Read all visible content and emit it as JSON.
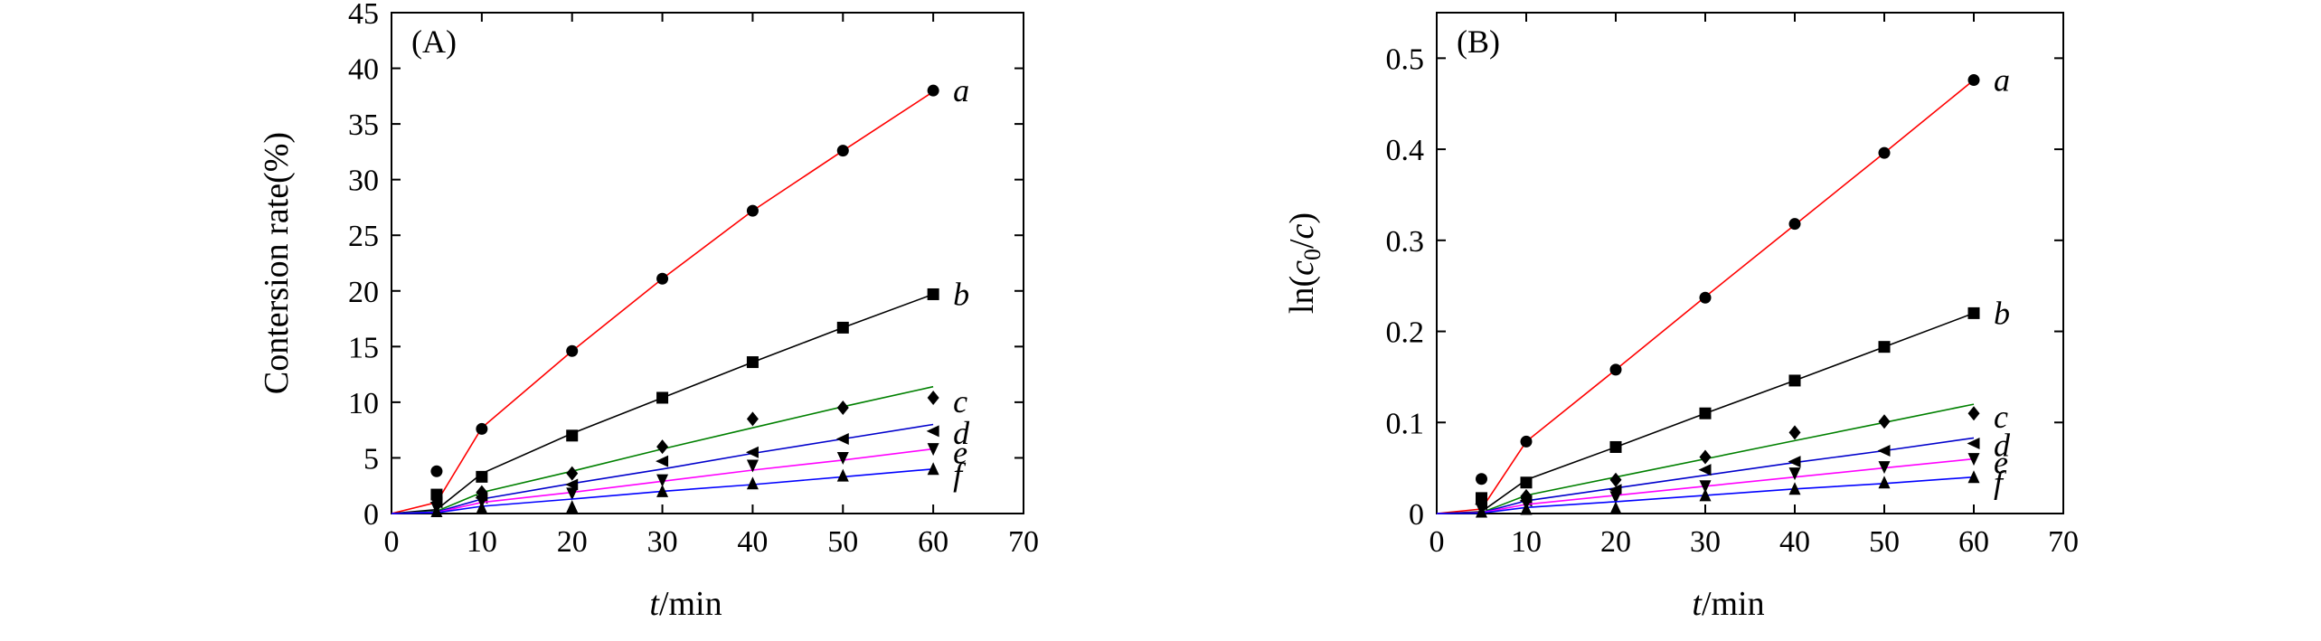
{
  "chart_data": [
    {
      "type": "scatter",
      "panel_label": "(A)",
      "xlabel_italic": "t",
      "xlabel_rest": "/min",
      "ylabel": "Contersion rate(%)",
      "xlim": [
        0,
        70
      ],
      "ylim": [
        0,
        45
      ],
      "x_ticks": [
        "0",
        "10",
        "20",
        "30",
        "40",
        "50",
        "60",
        "70"
      ],
      "y_ticks": [
        "0",
        "5",
        "10",
        "15",
        "20",
        "25",
        "30",
        "35",
        "40",
        "45"
      ],
      "x": [
        5,
        10,
        20,
        30,
        40,
        50,
        60
      ],
      "series": [
        {
          "name": "a",
          "color": "#ff0000",
          "marker": "circle",
          "values": [
            3.8,
            7.6,
            14.6,
            21.1,
            27.2,
            32.6,
            38.0
          ],
          "fit": [
            0,
            1.0,
            7.7,
            14.6,
            21.1,
            27.2,
            32.6,
            37.9
          ]
        },
        {
          "name": "b",
          "color": "#000000",
          "marker": "square",
          "values": [
            1.7,
            3.3,
            7.0,
            10.4,
            13.6,
            16.7,
            19.7
          ],
          "fit": [
            0,
            0.35,
            3.6,
            7.2,
            10.4,
            13.6,
            16.7,
            19.7
          ]
        },
        {
          "name": "c",
          "color": "#008000",
          "marker": "diamond",
          "values": [
            1.3,
            1.9,
            3.6,
            6.0,
            8.5,
            9.5,
            10.4
          ],
          "fit": [
            0,
            0.2,
            1.9,
            3.8,
            5.8,
            7.7,
            9.6,
            11.4
          ]
        },
        {
          "name": "d",
          "color": "#0000cc",
          "marker": "triangle-left",
          "values": [
            1.0,
            1.4,
            2.6,
            4.7,
            5.5,
            6.7,
            7.4
          ],
          "fit": [
            0,
            0.15,
            1.3,
            2.7,
            4.0,
            5.4,
            6.7,
            8.0
          ]
        },
        {
          "name": "e",
          "color": "#ff00ff",
          "marker": "triangle-down",
          "values": [
            0.5,
            1.1,
            1.8,
            3.0,
            4.3,
            5.0,
            5.8
          ],
          "fit": [
            0,
            0.1,
            1.0,
            1.9,
            2.9,
            3.9,
            4.8,
            5.8
          ]
        },
        {
          "name": "f",
          "color": "#0000ff",
          "marker": "triangle-up",
          "values": [
            0.2,
            0.5,
            0.6,
            2.0,
            2.7,
            3.4,
            4.0
          ],
          "fit": [
            0,
            0.07,
            0.65,
            1.3,
            2.0,
            2.6,
            3.3,
            4.0
          ]
        }
      ]
    },
    {
      "type": "scatter",
      "panel_label": "(B)",
      "xlabel_italic": "t",
      "xlabel_rest": "/min",
      "ylabel": "ln(c0/c)",
      "ylabel_parts": {
        "pre": "ln(",
        "c1": "c",
        "sub": "0",
        "mid": "/",
        "c2": "c",
        "post": ")"
      },
      "xlim": [
        0,
        70
      ],
      "ylim": [
        0,
        0.55
      ],
      "x_ticks": [
        "0",
        "10",
        "20",
        "30",
        "40",
        "50",
        "60",
        "70"
      ],
      "y_ticks": [
        "0",
        "0.1",
        "0.2",
        "0.3",
        "0.4",
        "0.5"
      ],
      "x": [
        5,
        10,
        20,
        30,
        40,
        50,
        60
      ],
      "series": [
        {
          "name": "a",
          "color": "#ff0000",
          "marker": "circle",
          "values": [
            0.038,
            0.079,
            0.158,
            0.237,
            0.318,
            0.396,
            0.476
          ],
          "fit": [
            0,
            0.005,
            0.079,
            0.158,
            0.238,
            0.317,
            0.396,
            0.476
          ]
        },
        {
          "name": "b",
          "color": "#000000",
          "marker": "square",
          "values": [
            0.017,
            0.034,
            0.073,
            0.11,
            0.146,
            0.183,
            0.22
          ],
          "fit": [
            0,
            0.002,
            0.037,
            0.073,
            0.11,
            0.146,
            0.183,
            0.22
          ]
        },
        {
          "name": "c",
          "color": "#008000",
          "marker": "diamond",
          "values": [
            0.013,
            0.019,
            0.037,
            0.062,
            0.089,
            0.101,
            0.11
          ],
          "fit": [
            0,
            0.001,
            0.02,
            0.04,
            0.06,
            0.08,
            0.1,
            0.12
          ]
        },
        {
          "name": "d",
          "color": "#0000cc",
          "marker": "triangle-left",
          "values": [
            0.01,
            0.014,
            0.026,
            0.048,
            0.057,
            0.069,
            0.077
          ],
          "fit": [
            0,
            0.001,
            0.014,
            0.028,
            0.042,
            0.056,
            0.069,
            0.083
          ]
        },
        {
          "name": "e",
          "color": "#ff00ff",
          "marker": "triangle-down",
          "values": [
            0.005,
            0.011,
            0.018,
            0.03,
            0.044,
            0.051,
            0.06
          ],
          "fit": [
            0,
            0.0008,
            0.01,
            0.02,
            0.03,
            0.04,
            0.05,
            0.06
          ]
        },
        {
          "name": "f",
          "color": "#0000ff",
          "marker": "triangle-up",
          "values": [
            0.002,
            0.005,
            0.006,
            0.02,
            0.027,
            0.034,
            0.04
          ],
          "fit": [
            0,
            0.0005,
            0.0067,
            0.013,
            0.02,
            0.027,
            0.033,
            0.04
          ]
        }
      ]
    }
  ]
}
